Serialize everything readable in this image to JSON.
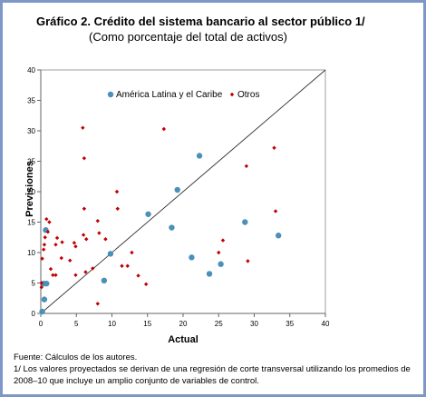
{
  "title": "Gráfico 2. Crédito del sistema bancario al sector público 1/",
  "subtitle": "(Como porcentaje del total de activos)",
  "notes": {
    "source": "Fuente: Cálculos de los autores.",
    "footnote_line1": "1/ Los valores proyectados se derivan de una regresión de corte transversal utilizando los promedios de",
    "footnote_line2": "2008–10 que incluye un amplio conjunto de variables de control."
  },
  "chart_data": {
    "type": "scatter",
    "xlabel": "Actual",
    "ylabel": "Previsiones",
    "xlim": [
      0,
      40
    ],
    "ylim": [
      0,
      40
    ],
    "xticks": [
      0,
      5,
      10,
      15,
      20,
      25,
      30,
      35,
      40
    ],
    "yticks": [
      0,
      5,
      10,
      15,
      20,
      25,
      30,
      35,
      40
    ],
    "grid": false,
    "reference_line": "45-degree line",
    "legend_position": "top",
    "series": [
      {
        "name": "América Latina y el Caribe",
        "color": "#4a90b8",
        "marker": "circle",
        "points": [
          [
            0.2,
            0.3
          ],
          [
            0.5,
            2.3
          ],
          [
            0.4,
            4.9
          ],
          [
            0.8,
            4.9
          ],
          [
            0.7,
            13.7
          ],
          [
            8.9,
            5.4
          ],
          [
            9.8,
            9.8
          ],
          [
            15.1,
            16.3
          ],
          [
            18.4,
            14.1
          ],
          [
            19.2,
            20.3
          ],
          [
            21.2,
            9.2
          ],
          [
            22.3,
            25.9
          ],
          [
            23.7,
            6.5
          ],
          [
            25.3,
            8.1
          ],
          [
            28.7,
            15.0
          ],
          [
            33.4,
            12.8
          ]
        ]
      },
      {
        "name": "Otros",
        "color": "#c00000",
        "marker": "diamond",
        "points": [
          [
            0.1,
            4.3
          ],
          [
            0.1,
            5.0
          ],
          [
            0.2,
            9.0
          ],
          [
            0.4,
            10.5
          ],
          [
            0.5,
            11.3
          ],
          [
            0.6,
            12.5
          ],
          [
            0.8,
            15.5
          ],
          [
            1.2,
            15.0
          ],
          [
            1.0,
            13.4
          ],
          [
            1.4,
            7.3
          ],
          [
            1.7,
            6.3
          ],
          [
            2.1,
            6.3
          ],
          [
            2.3,
            12.4
          ],
          [
            3.0,
            11.7
          ],
          [
            2.1,
            11.3
          ],
          [
            2.9,
            9.1
          ],
          [
            4.1,
            8.7
          ],
          [
            4.7,
            11.6
          ],
          [
            4.9,
            6.3
          ],
          [
            4.9,
            11.0
          ],
          [
            5.9,
            30.5
          ],
          [
            6.1,
            25.5
          ],
          [
            6.1,
            17.2
          ],
          [
            6.0,
            12.9
          ],
          [
            6.4,
            12.2
          ],
          [
            6.3,
            6.8
          ],
          [
            7.3,
            7.4
          ],
          [
            8.0,
            1.6
          ],
          [
            8.0,
            15.2
          ],
          [
            8.2,
            13.2
          ],
          [
            9.1,
            12.2
          ],
          [
            10.7,
            20.0
          ],
          [
            10.8,
            17.2
          ],
          [
            11.4,
            7.8
          ],
          [
            12.2,
            7.8
          ],
          [
            12.8,
            10.0
          ],
          [
            13.7,
            6.2
          ],
          [
            14.8,
            4.8
          ],
          [
            17.3,
            30.3
          ],
          [
            25.0,
            10.0
          ],
          [
            25.6,
            12.0
          ],
          [
            28.9,
            24.2
          ],
          [
            29.1,
            8.6
          ],
          [
            32.8,
            27.2
          ],
          [
            33.0,
            16.8
          ]
        ]
      }
    ]
  }
}
